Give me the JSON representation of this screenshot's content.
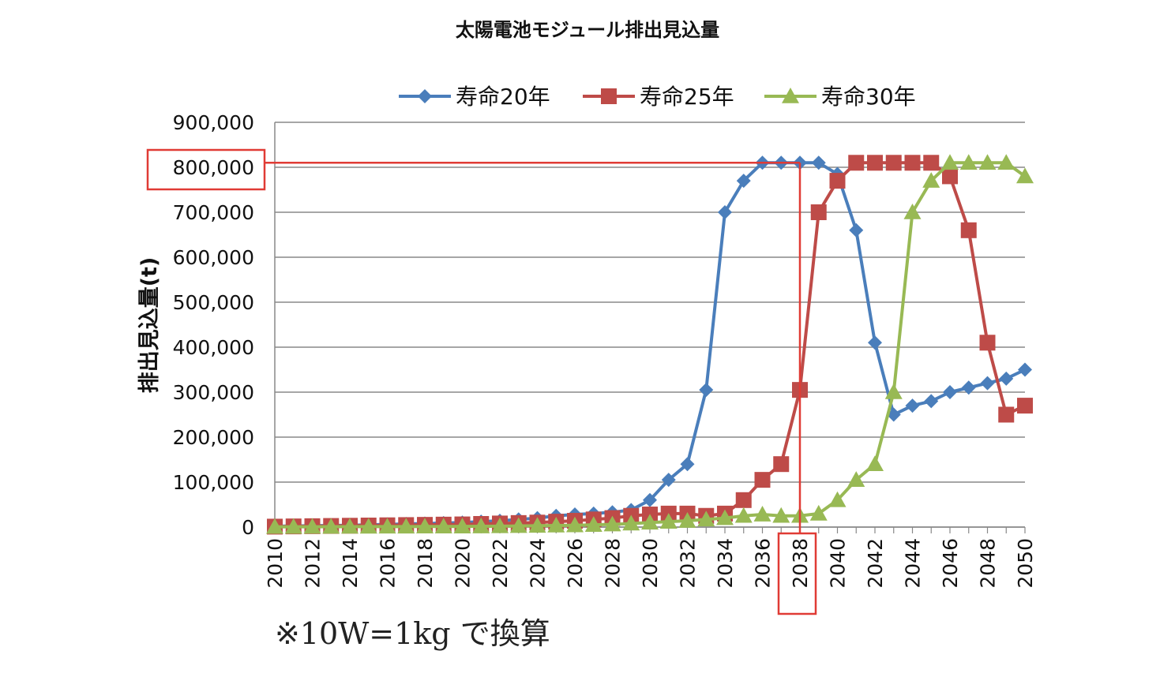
{
  "page": {
    "title": "太陽電池モジュール排出見込量",
    "footnote": "※10W=1kg で換算"
  },
  "chart_data": {
    "type": "line",
    "title": "太陽電池モジュール排出見込量",
    "xlabel": "",
    "ylabel": "排出見込量(t)",
    "ylim": [
      0,
      900000
    ],
    "y_ticks": [
      0,
      100000,
      200000,
      300000,
      400000,
      500000,
      600000,
      700000,
      800000,
      900000
    ],
    "y_tick_labels": [
      "0",
      "100,000",
      "200,000",
      "300,000",
      "400,000",
      "500,000",
      "600,000",
      "700,000",
      "800,000",
      "900,000"
    ],
    "x_tick_labels": [
      "2010",
      "2012",
      "2014",
      "2016",
      "2018",
      "2020",
      "2022",
      "2024",
      "2026",
      "2028",
      "2030",
      "2032",
      "2034",
      "2036",
      "2038",
      "2040",
      "2042",
      "2044",
      "2046",
      "2048",
      "2050"
    ],
    "x": [
      2010,
      2011,
      2012,
      2013,
      2014,
      2015,
      2016,
      2017,
      2018,
      2019,
      2020,
      2021,
      2022,
      2023,
      2024,
      2025,
      2026,
      2027,
      2028,
      2029,
      2030,
      2031,
      2032,
      2033,
      2034,
      2035,
      2036,
      2037,
      2038,
      2039,
      2040,
      2041,
      2042,
      2043,
      2044,
      2045,
      2046,
      2047,
      2048,
      2049,
      2050
    ],
    "grid": true,
    "legend_position": "top",
    "series": [
      {
        "name": "寿命20年",
        "color": "#4a7ebb",
        "marker": "diamond",
        "values": [
          2000,
          2500,
          3000,
          3500,
          4000,
          5000,
          6000,
          7000,
          8000,
          9000,
          10000,
          12000,
          14000,
          17000,
          20000,
          25000,
          28000,
          30000,
          33000,
          38000,
          60000,
          105000,
          140000,
          305000,
          700000,
          770000,
          810000,
          810000,
          810000,
          810000,
          785000,
          660000,
          410000,
          250000,
          270000,
          280000,
          300000,
          310000,
          320000,
          330000,
          350000
        ]
      },
      {
        "name": "寿命25年",
        "color": "#be4b48",
        "marker": "square",
        "values": [
          1000,
          1500,
          2000,
          2500,
          3000,
          3500,
          4000,
          4500,
          5000,
          5500,
          6000,
          7000,
          8000,
          9000,
          10000,
          12000,
          14000,
          17000,
          20000,
          25000,
          28000,
          30000,
          30000,
          25000,
          30000,
          60000,
          105000,
          140000,
          305000,
          700000,
          770000,
          810000,
          810000,
          810000,
          810000,
          810000,
          780000,
          660000,
          410000,
          250000,
          270000
        ]
      },
      {
        "name": "寿命30年",
        "color": "#98b954",
        "marker": "triangle",
        "values": [
          500,
          600,
          700,
          800,
          900,
          1000,
          1100,
          1200,
          1300,
          1400,
          1500,
          1700,
          2000,
          2500,
          3000,
          3500,
          4000,
          5000,
          6000,
          8000,
          10000,
          12000,
          14000,
          17000,
          20000,
          25000,
          28000,
          25000,
          25000,
          30000,
          60000,
          105000,
          140000,
          300000,
          700000,
          770000,
          810000,
          810000,
          810000,
          810000,
          780000
        ]
      }
    ],
    "highlight": {
      "color": "#e03b35",
      "y_value": 810000,
      "y_label": "800,000",
      "x_value": 2038,
      "x_label": "2038"
    }
  }
}
